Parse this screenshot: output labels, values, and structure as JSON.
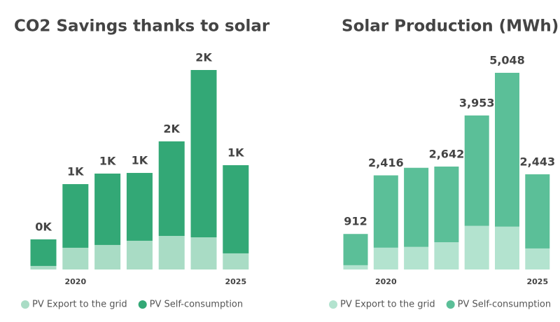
{
  "chart_data": [
    {
      "type": "bar",
      "stacked": true,
      "title": "CO2 Savings thanks to solar",
      "categories": [
        null,
        "2020",
        null,
        null,
        null,
        null,
        "2025"
      ],
      "series": [
        {
          "name": "PV Export to the grid",
          "color": "#a9dcc5",
          "values": [
            43,
            264,
            298,
            349,
            408,
            391,
            196
          ]
        },
        {
          "name": "PV Self-consumption",
          "color": "#33a876",
          "values": [
            323,
            773,
            867,
            824,
            1148,
            2032,
            1071
          ]
        }
      ],
      "totals": [
        366,
        1037,
        1165,
        1173,
        1556,
        2423,
        1267
      ],
      "total_labels": [
        "0K",
        "1K",
        "1K",
        "1K",
        "2K",
        "2K",
        "1K"
      ]
    },
    {
      "type": "bar",
      "stacked": true,
      "title": "Solar Production (MWh)",
      "categories": [
        null,
        "2020",
        null,
        null,
        null,
        null,
        "2025"
      ],
      "series": [
        {
          "name": "PV Export to the grid",
          "color": "#b3e3cf",
          "values": [
            110,
            560,
            580,
            700,
            1120,
            1100,
            540
          ]
        },
        {
          "name": "PV Self-consumption",
          "color": "#5bbf98",
          "values": [
            802,
            1856,
            2030,
            1942,
            2833,
            3948,
            1903
          ]
        }
      ],
      "totals": [
        912,
        2416,
        2610,
        2642,
        3953,
        5048,
        2443
      ],
      "total_labels": [
        "912",
        "2,416",
        null,
        "2,642",
        "3,953",
        "5,048",
        "2,443"
      ]
    }
  ]
}
